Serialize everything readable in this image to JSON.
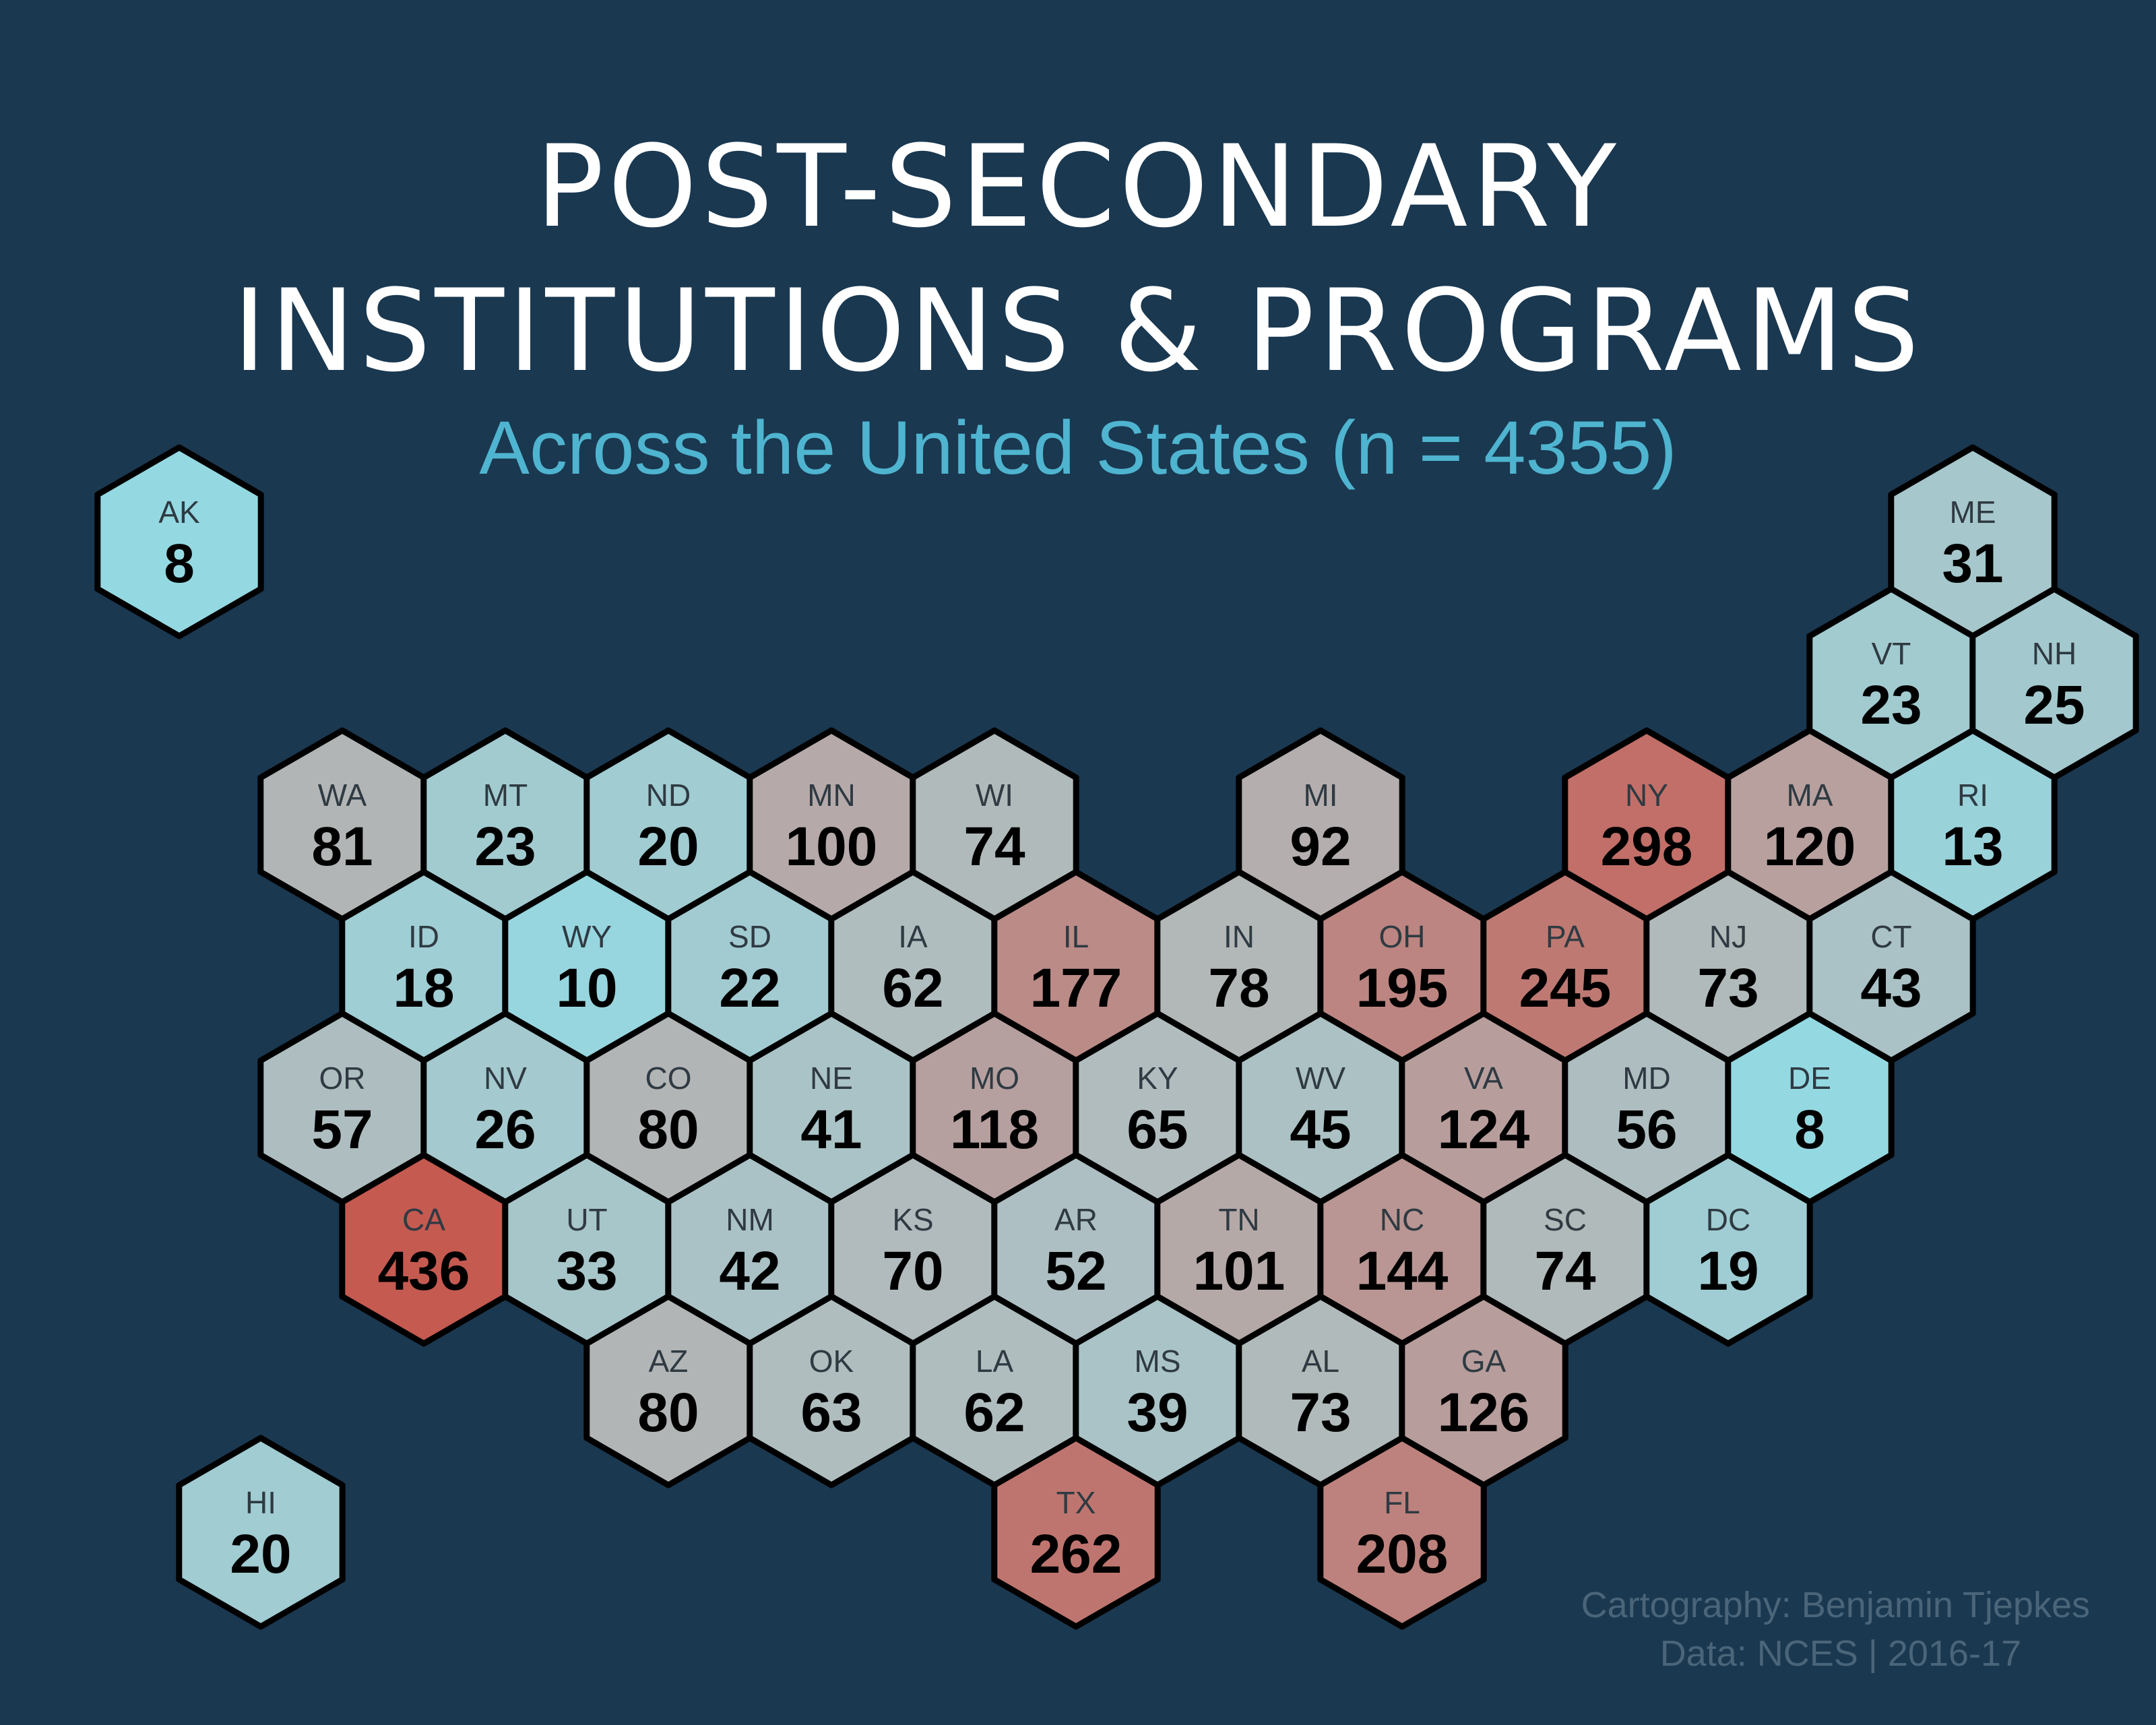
{
  "title_line1": "POST-SECONDARY",
  "title_line2": "INSTITUTIONS & PROGRAMS",
  "subtitle": "Across the United States (n = 4355)",
  "credit_line1": "Cartography: Benjamin  Tjepkes",
  "credit_line2": "Data: NCES | 2016-17",
  "colors": {
    "background": "#1a3850",
    "low": "#94d9e2",
    "mid": "#b1bbbc",
    "high": "#c55a51",
    "outline": "#000000"
  },
  "chart_data": {
    "type": "hex-tile-map",
    "scale": {
      "min": 8,
      "max": 436
    },
    "states": [
      {
        "abbr": "AK",
        "value": 8,
        "col": 0,
        "row": 0
      },
      {
        "abbr": "ME",
        "value": 31,
        "col": 11,
        "row": 0
      },
      {
        "abbr": "VT",
        "value": 23,
        "col": 10,
        "row": 1
      },
      {
        "abbr": "NH",
        "value": 25,
        "col": 11,
        "row": 1
      },
      {
        "abbr": "WA",
        "value": 81,
        "col": 1,
        "row": 2
      },
      {
        "abbr": "MT",
        "value": 23,
        "col": 2,
        "row": 2
      },
      {
        "abbr": "ND",
        "value": 20,
        "col": 3,
        "row": 2
      },
      {
        "abbr": "MN",
        "value": 100,
        "col": 4,
        "row": 2
      },
      {
        "abbr": "WI",
        "value": 74,
        "col": 5,
        "row": 2
      },
      {
        "abbr": "MI",
        "value": 92,
        "col": 7,
        "row": 2
      },
      {
        "abbr": "NY",
        "value": 298,
        "col": 9,
        "row": 2
      },
      {
        "abbr": "MA",
        "value": 120,
        "col": 10,
        "row": 2
      },
      {
        "abbr": "RI",
        "value": 13,
        "col": 11,
        "row": 2
      },
      {
        "abbr": "ID",
        "value": 18,
        "col": 1,
        "row": 3
      },
      {
        "abbr": "WY",
        "value": 10,
        "col": 2,
        "row": 3
      },
      {
        "abbr": "SD",
        "value": 22,
        "col": 3,
        "row": 3
      },
      {
        "abbr": "IA",
        "value": 62,
        "col": 4,
        "row": 3
      },
      {
        "abbr": "IL",
        "value": 177,
        "col": 5,
        "row": 3
      },
      {
        "abbr": "IN",
        "value": 78,
        "col": 6,
        "row": 3
      },
      {
        "abbr": "OH",
        "value": 195,
        "col": 7,
        "row": 3
      },
      {
        "abbr": "PA",
        "value": 245,
        "col": 8,
        "row": 3
      },
      {
        "abbr": "NJ",
        "value": 73,
        "col": 9,
        "row": 3
      },
      {
        "abbr": "CT",
        "value": 43,
        "col": 10,
        "row": 3
      },
      {
        "abbr": "OR",
        "value": 57,
        "col": 1,
        "row": 4
      },
      {
        "abbr": "NV",
        "value": 26,
        "col": 2,
        "row": 4
      },
      {
        "abbr": "CO",
        "value": 80,
        "col": 3,
        "row": 4
      },
      {
        "abbr": "NE",
        "value": 41,
        "col": 4,
        "row": 4
      },
      {
        "abbr": "MO",
        "value": 118,
        "col": 5,
        "row": 4
      },
      {
        "abbr": "KY",
        "value": 65,
        "col": 6,
        "row": 4
      },
      {
        "abbr": "WV",
        "value": 45,
        "col": 7,
        "row": 4
      },
      {
        "abbr": "VA",
        "value": 124,
        "col": 8,
        "row": 4
      },
      {
        "abbr": "MD",
        "value": 56,
        "col": 9,
        "row": 4
      },
      {
        "abbr": "DE",
        "value": 8,
        "col": 10,
        "row": 4
      },
      {
        "abbr": "CA",
        "value": 436,
        "col": 1,
        "row": 5
      },
      {
        "abbr": "UT",
        "value": 33,
        "col": 2,
        "row": 5
      },
      {
        "abbr": "NM",
        "value": 42,
        "col": 3,
        "row": 5
      },
      {
        "abbr": "KS",
        "value": 70,
        "col": 4,
        "row": 5
      },
      {
        "abbr": "AR",
        "value": 52,
        "col": 5,
        "row": 5
      },
      {
        "abbr": "TN",
        "value": 101,
        "col": 6,
        "row": 5
      },
      {
        "abbr": "NC",
        "value": 144,
        "col": 7,
        "row": 5
      },
      {
        "abbr": "SC",
        "value": 74,
        "col": 8,
        "row": 5
      },
      {
        "abbr": "DC",
        "value": 19,
        "col": 9,
        "row": 5
      },
      {
        "abbr": "AZ",
        "value": 80,
        "col": 3,
        "row": 6
      },
      {
        "abbr": "OK",
        "value": 63,
        "col": 4,
        "row": 6
      },
      {
        "abbr": "LA",
        "value": 62,
        "col": 5,
        "row": 6
      },
      {
        "abbr": "MS",
        "value": 39,
        "col": 6,
        "row": 6
      },
      {
        "abbr": "AL",
        "value": 73,
        "col": 7,
        "row": 6
      },
      {
        "abbr": "GA",
        "value": 126,
        "col": 8,
        "row": 6
      },
      {
        "abbr": "HI",
        "value": 20,
        "col": 0,
        "row": 7
      },
      {
        "abbr": "TX",
        "value": 262,
        "col": 5,
        "row": 7
      },
      {
        "abbr": "FL",
        "value": 208,
        "col": 7,
        "row": 7
      }
    ]
  }
}
